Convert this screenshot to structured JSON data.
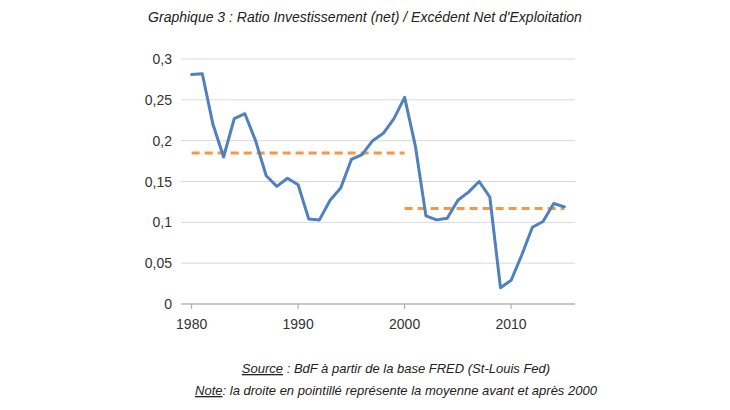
{
  "chart_data": {
    "type": "line",
    "title": "Graphique 3 : Ratio Investissement (net) / Excédent Net d'Exploitation",
    "x": [
      1980,
      1981,
      1982,
      1983,
      1984,
      1985,
      1986,
      1987,
      1988,
      1989,
      1990,
      1991,
      1992,
      1993,
      1994,
      1995,
      1996,
      1997,
      1998,
      1999,
      2000,
      2001,
      2002,
      2003,
      2004,
      2005,
      2006,
      2007,
      2008,
      2009,
      2010,
      2011,
      2012,
      2013,
      2014,
      2015
    ],
    "series": [
      {
        "color": "#4f81bd",
        "line_style": "solid",
        "values": [
          0.281,
          0.282,
          0.22,
          0.18,
          0.227,
          0.233,
          0.2,
          0.157,
          0.144,
          0.154,
          0.146,
          0.104,
          0.103,
          0.127,
          0.142,
          0.177,
          0.183,
          0.2,
          0.209,
          0.227,
          0.253,
          0.194,
          0.108,
          0.103,
          0.105,
          0.127,
          0.137,
          0.15,
          0.131,
          0.02,
          0.029,
          0.06,
          0.094,
          0.101,
          0.123,
          0.119
        ]
      },
      {
        "color": "#f79646",
        "line_style": "dashed",
        "values": [
          0.185,
          0.185,
          0.185,
          0.185,
          0.185,
          0.185,
          0.185,
          0.185,
          0.185,
          0.185,
          0.185,
          0.185,
          0.185,
          0.185,
          0.185,
          0.185,
          0.185,
          0.185,
          0.185,
          0.185,
          0.185,
          null,
          null,
          null,
          null,
          null,
          null,
          null,
          null,
          null,
          null,
          null,
          null,
          null,
          null,
          null
        ]
      },
      {
        "color": "#f79646",
        "line_style": "dashed",
        "values": [
          null,
          null,
          null,
          null,
          null,
          null,
          null,
          null,
          null,
          null,
          null,
          null,
          null,
          null,
          null,
          null,
          null,
          null,
          null,
          null,
          0.117,
          0.117,
          0.117,
          0.117,
          0.117,
          0.117,
          0.117,
          0.117,
          0.117,
          0.117,
          0.117,
          0.117,
          0.117,
          0.117,
          0.117,
          0.117
        ]
      }
    ],
    "xlim": [
      1979,
      2016
    ],
    "xticks": [
      1980,
      1990,
      2000,
      2010
    ],
    "ylim": [
      0,
      0.3
    ],
    "yticks": [
      0,
      {
        "value": 0.05,
        "label": "0,05"
      },
      {
        "value": 0.1,
        "label": "0,1"
      },
      {
        "value": 0.15,
        "label": "0,15"
      },
      {
        "value": 0.2,
        "label": "0,2"
      },
      {
        "value": 0.25,
        "label": "0,25"
      },
      {
        "value": 0.3,
        "label": "0,3"
      }
    ],
    "grid": true,
    "annotations": [
      {
        "label": "Source",
        "text": " : BdF à partir de la base FRED (St-Louis Fed)"
      },
      {
        "label": "Note",
        "text": ": la droite en pointillé représente la moyenne avant et après 2000"
      }
    ]
  }
}
